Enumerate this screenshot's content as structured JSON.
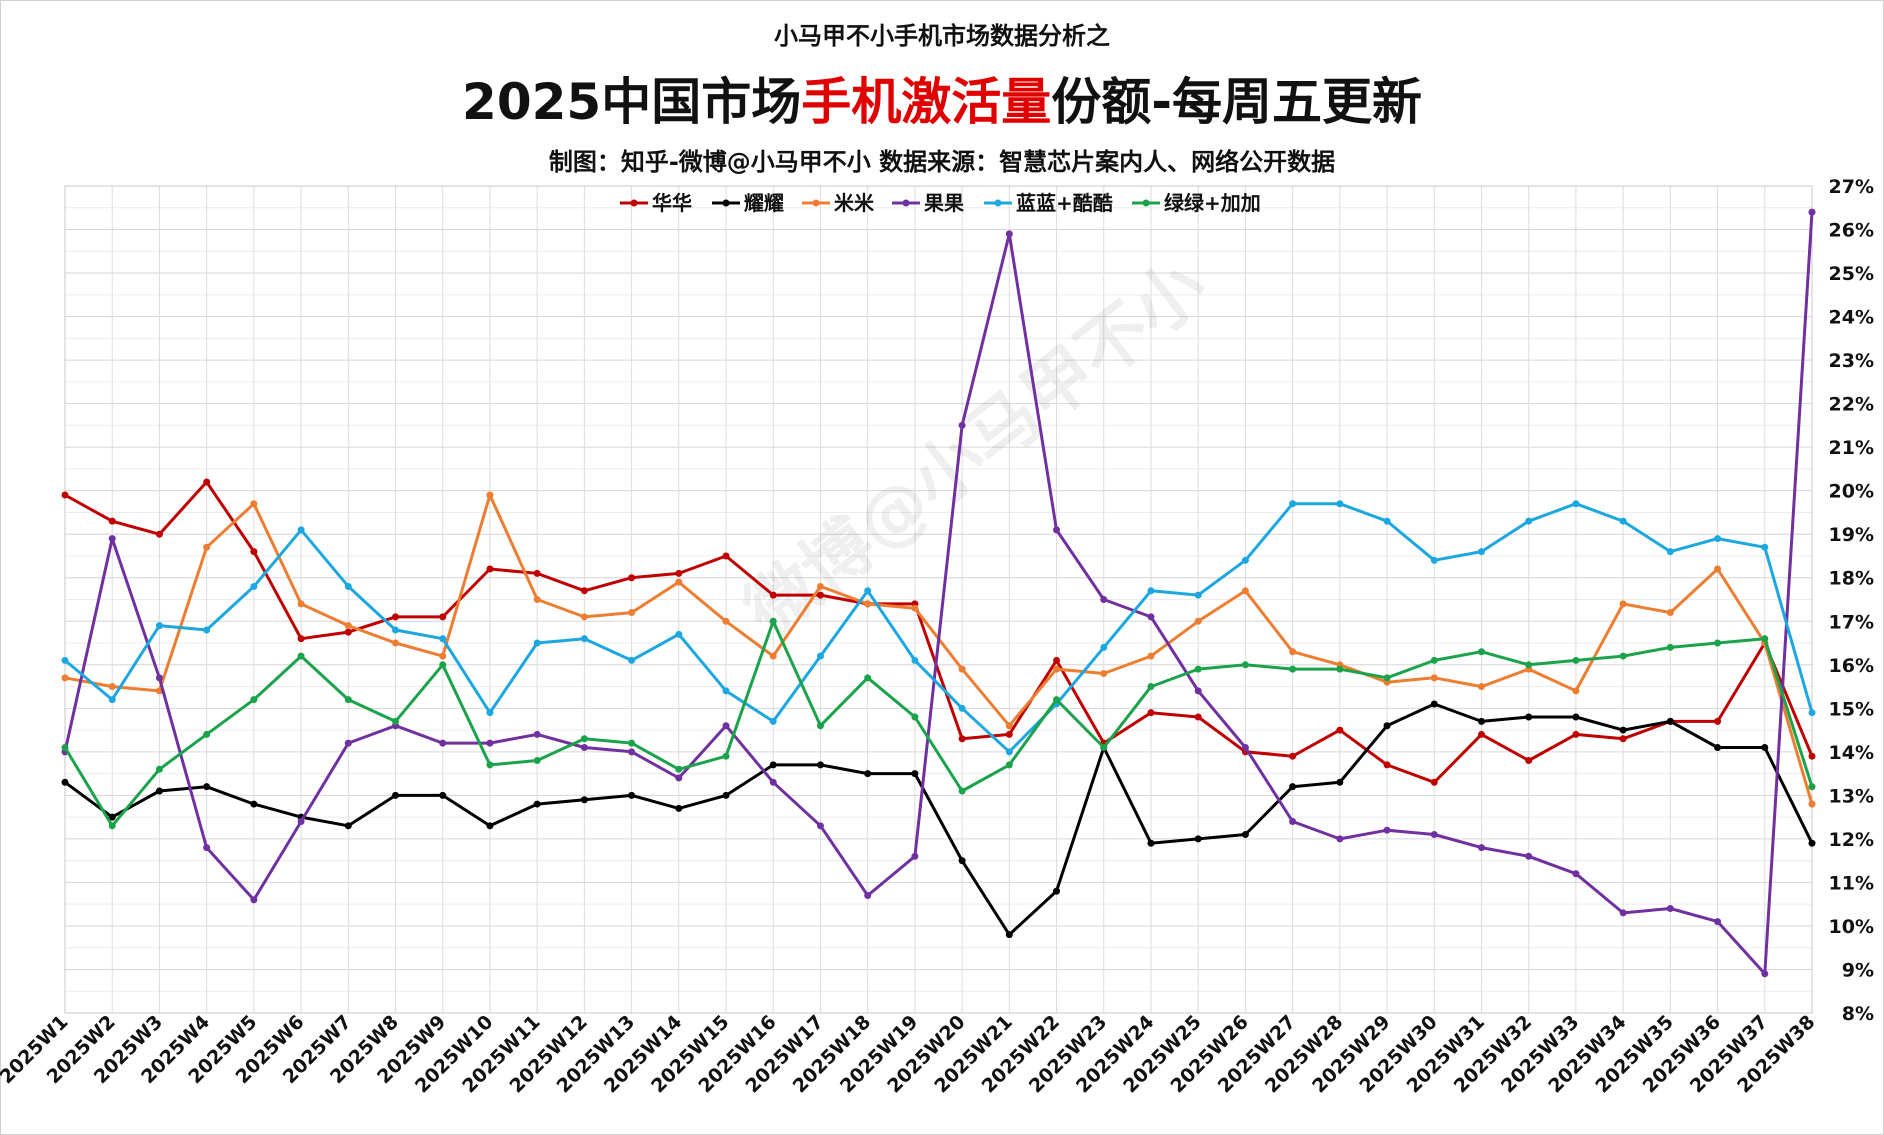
{
  "header": {
    "subtitle": "小马甲不小手机市场数据分析之",
    "title_part1": "2025中国市场",
    "title_highlight": "手机激活量",
    "title_part2": "份额-每周五更新",
    "credit": "制图：知乎-微博@小马甲不小   数据来源：智慧芯片案内人、网络公开数据"
  },
  "watermark": "微博@小马甲不小",
  "colors": {
    "highlight": "#e00000"
  },
  "chart_data": {
    "type": "line",
    "title": "2025中国市场手机激活量份额-每周五更新",
    "categories": [
      "2025W1",
      "2025W2",
      "2025W3",
      "2025W4",
      "2025W5",
      "2025W6",
      "2025W7",
      "2025W8",
      "2025W9",
      "2025W10",
      "2025W11",
      "2025W12",
      "2025W13",
      "2025W14",
      "2025W15",
      "2025W16",
      "2025W17",
      "2025W18",
      "2025W19",
      "2025W20",
      "2025W21",
      "2025W22",
      "2025W23",
      "2025W24",
      "2025W25",
      "2025W26",
      "2025W27",
      "2025W28",
      "2025W29",
      "2025W30",
      "2025W31",
      "2025W32",
      "2025W33",
      "2025W34",
      "2025W35",
      "2025W36",
      "2025W37",
      "2025W38"
    ],
    "ylim": [
      8,
      27
    ],
    "yticks": [
      "8%",
      "9%",
      "10%",
      "11%",
      "12%",
      "13%",
      "14%",
      "15%",
      "16%",
      "17%",
      "18%",
      "19%",
      "20%",
      "21%",
      "22%",
      "23%",
      "24%",
      "25%",
      "26%",
      "27%"
    ],
    "y_axis_side": "right",
    "grid": true,
    "legend_position": "top",
    "series": [
      {
        "name": "华华",
        "color": "#c00000",
        "values": [
          19.9,
          19.3,
          19.0,
          20.2,
          18.6,
          16.6,
          16.75,
          17.1,
          17.1,
          18.2,
          18.1,
          17.7,
          18.0,
          18.1,
          18.5,
          17.6,
          17.6,
          17.4,
          17.4,
          14.3,
          14.4,
          16.1,
          14.2,
          14.9,
          14.8,
          14.0,
          13.9,
          14.5,
          13.7,
          13.3,
          14.4,
          13.8,
          14.4,
          14.3,
          14.7,
          14.7,
          16.5,
          13.9
        ]
      },
      {
        "name": "耀耀",
        "color": "#000000",
        "values": [
          13.3,
          12.5,
          13.1,
          13.2,
          12.8,
          12.5,
          12.3,
          13.0,
          13.0,
          12.3,
          12.8,
          12.9,
          13.0,
          12.7,
          13.0,
          13.7,
          13.7,
          13.5,
          13.5,
          11.5,
          9.8,
          10.8,
          14.1,
          11.9,
          12.0,
          12.1,
          13.2,
          13.3,
          14.6,
          15.1,
          14.7,
          14.8,
          14.8,
          14.5,
          14.7,
          14.1,
          14.1,
          11.9
        ]
      },
      {
        "name": "米米",
        "color": "#ed7d31",
        "values": [
          15.7,
          15.5,
          15.4,
          18.7,
          19.7,
          17.4,
          16.9,
          16.5,
          16.2,
          19.9,
          17.5,
          17.1,
          17.2,
          17.9,
          17.0,
          16.2,
          17.8,
          17.4,
          17.3,
          15.9,
          14.6,
          15.9,
          15.8,
          16.2,
          17.0,
          17.7,
          16.3,
          16.0,
          15.6,
          15.7,
          15.5,
          15.9,
          15.4,
          17.4,
          17.2,
          18.2,
          16.5,
          12.8
        ]
      },
      {
        "name": "果果",
        "color": "#7030a0",
        "values": [
          14.0,
          18.9,
          15.7,
          11.8,
          10.6,
          12.4,
          14.2,
          14.6,
          14.2,
          14.2,
          14.4,
          14.1,
          14.0,
          13.4,
          14.6,
          13.3,
          12.3,
          10.7,
          11.6,
          21.5,
          25.9,
          19.1,
          17.5,
          17.1,
          15.4,
          14.1,
          12.4,
          12.0,
          12.2,
          12.1,
          11.8,
          11.6,
          11.2,
          10.3,
          10.4,
          10.1,
          8.9,
          26.4
        ]
      },
      {
        "name": "蓝蓝+酷酷",
        "color": "#1ca7e0",
        "values": [
          16.1,
          15.2,
          16.9,
          16.8,
          17.8,
          19.1,
          17.8,
          16.8,
          16.6,
          14.9,
          16.5,
          16.6,
          16.1,
          16.7,
          15.4,
          14.7,
          16.2,
          17.7,
          16.1,
          15.0,
          14.0,
          15.1,
          16.4,
          17.7,
          17.6,
          18.4,
          19.7,
          19.7,
          19.3,
          18.4,
          18.6,
          19.3,
          19.7,
          19.3,
          18.6,
          18.9,
          18.7,
          14.9
        ]
      },
      {
        "name": "绿绿+加加",
        "color": "#1aa34a",
        "values": [
          14.1,
          12.3,
          13.6,
          14.4,
          15.2,
          16.2,
          15.2,
          14.7,
          16.0,
          13.7,
          13.8,
          14.3,
          14.2,
          13.6,
          13.9,
          17.0,
          14.6,
          15.7,
          14.8,
          13.1,
          13.7,
          15.2,
          14.1,
          15.5,
          15.9,
          16.0,
          15.9,
          15.9,
          15.7,
          16.1,
          16.3,
          16.0,
          16.1,
          16.2,
          16.4,
          16.5,
          16.6,
          13.2
        ]
      }
    ]
  }
}
